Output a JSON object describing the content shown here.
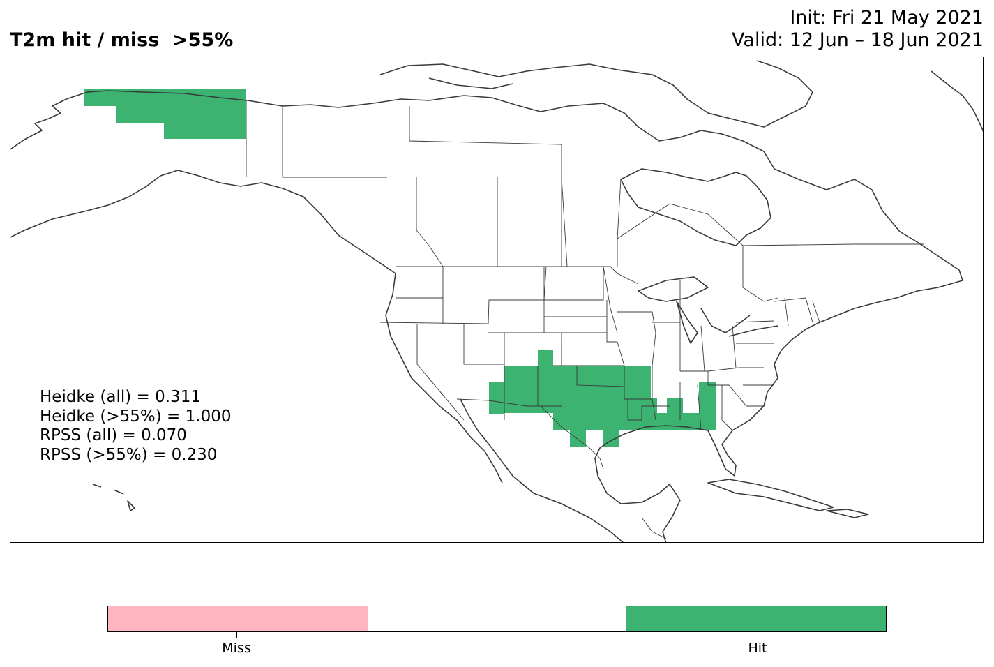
{
  "title": {
    "left": "T2m hit / miss  >55%",
    "init": "Init: Fri 21 May 2021",
    "valid": "Valid: 12 Jun – 18 Jun 2021"
  },
  "scores": {
    "heidke_all": "Heidke (all) = 0.311",
    "heidke_55": "Heidke (>55%) = 1.000",
    "rpss_all": "RPSS (all) = 0.070",
    "rpss_55": "RPSS (>55%) = 0.230"
  },
  "map": {
    "region": "North America",
    "categories": [
      "Miss",
      "Hit"
    ],
    "hit_regions": [
      "Alaska (north)",
      "Southern Plains",
      "Texas",
      "Oklahoma",
      "Arkansas",
      "Louisiana",
      "Mississippi",
      "Alabama",
      "Georgia",
      "Gulf Coast"
    ],
    "miss_regions": []
  },
  "colorbar": {
    "segments": [
      {
        "name": "Miss",
        "color": "#ffb6c1"
      },
      {
        "name": "",
        "color": "#ffffff"
      },
      {
        "name": "Hit",
        "color": "#3cb371"
      }
    ],
    "tick_labels": [
      "Miss",
      "Hit"
    ]
  },
  "colors": {
    "hit": "#3cb371",
    "miss": "#ffb6c1",
    "coastline": "#3a3a3a"
  }
}
